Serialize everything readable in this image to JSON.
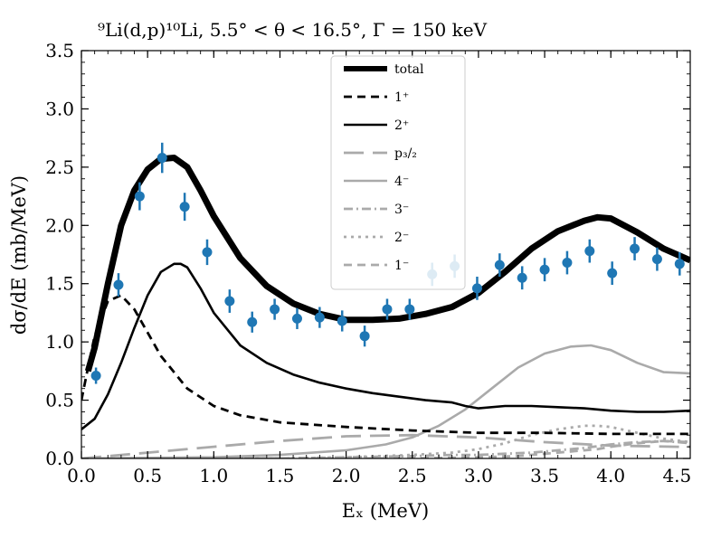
{
  "chart_data": {
    "type": "line",
    "title": "⁹Li(d,p)¹⁰Li, 5.5° < θ < 16.5°, Γ = 150 keV",
    "xlabel": "Eₓ (MeV)",
    "ylabel": "dσ/dE (mb/MeV)",
    "xlim": [
      0.0,
      4.6
    ],
    "ylim": [
      0.0,
      3.5
    ],
    "xticks": [
      0.0,
      0.5,
      1.0,
      1.5,
      2.0,
      2.5,
      3.0,
      3.5,
      4.0,
      4.5
    ],
    "yticks": [
      0.0,
      0.5,
      1.0,
      1.5,
      2.0,
      2.5,
      3.0,
      3.5
    ],
    "xtick_labels": [
      "0.0",
      "0.5",
      "1.0",
      "1.5",
      "2.0",
      "2.5",
      "3.0",
      "3.5",
      "4.0",
      "4.5"
    ],
    "ytick_labels": [
      "0.0",
      "0.5",
      "1.0",
      "1.5",
      "2.0",
      "2.5",
      "3.0",
      "3.5"
    ],
    "legend_position": "top-center",
    "series": [
      {
        "name": "total",
        "color": "#000000",
        "style": "thick-solid",
        "x": [
          0.05,
          0.1,
          0.2,
          0.3,
          0.4,
          0.5,
          0.6,
          0.7,
          0.8,
          0.9,
          1.0,
          1.2,
          1.4,
          1.6,
          1.8,
          2.0,
          2.2,
          2.4,
          2.6,
          2.8,
          3.0,
          3.2,
          3.4,
          3.6,
          3.8,
          3.9,
          4.0,
          4.2,
          4.4,
          4.6
        ],
        "y": [
          0.75,
          0.95,
          1.5,
          2.0,
          2.3,
          2.48,
          2.57,
          2.58,
          2.5,
          2.3,
          2.08,
          1.72,
          1.48,
          1.33,
          1.24,
          1.19,
          1.19,
          1.2,
          1.24,
          1.3,
          1.42,
          1.6,
          1.8,
          1.95,
          2.04,
          2.07,
          2.06,
          1.94,
          1.8,
          1.7
        ]
      },
      {
        "name": "1⁺",
        "color": "#000000",
        "style": "dashed",
        "x": [
          0.0,
          0.05,
          0.1,
          0.2,
          0.3,
          0.4,
          0.5,
          0.6,
          0.8,
          1.0,
          1.2,
          1.5,
          2.0,
          2.5,
          3.0,
          3.5,
          4.0,
          4.5,
          4.6
        ],
        "y": [
          0.5,
          0.78,
          1.05,
          1.35,
          1.4,
          1.28,
          1.08,
          0.88,
          0.6,
          0.45,
          0.37,
          0.31,
          0.27,
          0.24,
          0.22,
          0.22,
          0.21,
          0.21,
          0.21
        ]
      },
      {
        "name": "2⁺",
        "color": "#000000",
        "style": "solid",
        "x": [
          0.0,
          0.1,
          0.2,
          0.3,
          0.4,
          0.5,
          0.6,
          0.7,
          0.75,
          0.8,
          0.9,
          1.0,
          1.2,
          1.4,
          1.6,
          1.8,
          2.0,
          2.2,
          2.4,
          2.6,
          2.8,
          2.9,
          3.0,
          3.2,
          3.4,
          3.6,
          3.8,
          4.0,
          4.2,
          4.4,
          4.6
        ],
        "y": [
          0.25,
          0.34,
          0.55,
          0.82,
          1.12,
          1.4,
          1.6,
          1.67,
          1.67,
          1.64,
          1.46,
          1.25,
          0.97,
          0.82,
          0.72,
          0.65,
          0.6,
          0.56,
          0.53,
          0.5,
          0.48,
          0.45,
          0.43,
          0.45,
          0.45,
          0.44,
          0.43,
          0.41,
          0.4,
          0.4,
          0.41
        ]
      },
      {
        "name": "p₃/₂",
        "color": "#aaaaaa",
        "style": "long-dashed",
        "x": [
          0.0,
          0.5,
          1.0,
          1.5,
          2.0,
          2.5,
          3.0,
          3.5,
          4.0,
          4.5,
          4.6
        ],
        "y": [
          0.0,
          0.05,
          0.1,
          0.15,
          0.19,
          0.2,
          0.18,
          0.14,
          0.11,
          0.1,
          0.1
        ]
      },
      {
        "name": "4⁻",
        "color": "#aaaaaa",
        "style": "solid",
        "x": [
          0.0,
          1.0,
          1.5,
          2.0,
          2.3,
          2.5,
          2.7,
          2.9,
          3.1,
          3.3,
          3.5,
          3.7,
          3.85,
          4.0,
          4.2,
          4.4,
          4.6
        ],
        "y": [
          0.0,
          0.01,
          0.03,
          0.07,
          0.12,
          0.18,
          0.28,
          0.42,
          0.6,
          0.78,
          0.9,
          0.96,
          0.97,
          0.93,
          0.82,
          0.74,
          0.73
        ]
      },
      {
        "name": "3⁻",
        "color": "#aaaaaa",
        "style": "dash-dot",
        "x": [
          0.0,
          1.5,
          2.0,
          2.5,
          2.8,
          3.0,
          3.2,
          3.4,
          3.6,
          3.8,
          4.0,
          4.2,
          4.4,
          4.6
        ],
        "y": [
          0.0,
          0.0,
          0.01,
          0.02,
          0.03,
          0.03,
          0.04,
          0.05,
          0.07,
          0.09,
          0.12,
          0.14,
          0.15,
          0.13
        ]
      },
      {
        "name": "2⁻",
        "color": "#aaaaaa",
        "style": "dotted",
        "x": [
          0.0,
          1.5,
          2.0,
          2.5,
          2.8,
          3.0,
          3.2,
          3.4,
          3.6,
          3.8,
          3.9,
          4.0,
          4.2,
          4.4,
          4.6
        ],
        "y": [
          0.0,
          0.0,
          0.01,
          0.03,
          0.05,
          0.08,
          0.13,
          0.2,
          0.25,
          0.28,
          0.28,
          0.27,
          0.22,
          0.17,
          0.14
        ]
      },
      {
        "name": "1⁻",
        "color": "#aaaaaa",
        "style": "dashed",
        "x": [
          0.0,
          2.0,
          2.5,
          3.0,
          3.3,
          3.5,
          3.7,
          3.9,
          4.0,
          4.2,
          4.4,
          4.6
        ],
        "y": [
          0.0,
          0.0,
          0.0,
          0.01,
          0.02,
          0.04,
          0.06,
          0.08,
          0.1,
          0.13,
          0.15,
          0.14
        ]
      }
    ],
    "data_points": {
      "name": "data",
      "color": "#1f77b4",
      "x": [
        0.11,
        0.28,
        0.44,
        0.61,
        0.78,
        0.95,
        1.12,
        1.29,
        1.46,
        1.63,
        1.8,
        1.97,
        2.14,
        2.31,
        2.48,
        2.65,
        2.82,
        2.99,
        3.16,
        3.33,
        3.5,
        3.67,
        3.84,
        4.01,
        4.18,
        4.35,
        4.52
      ],
      "y": [
        0.71,
        1.49,
        2.25,
        2.58,
        2.16,
        1.77,
        1.35,
        1.17,
        1.28,
        1.2,
        1.21,
        1.18,
        1.05,
        1.28,
        1.28,
        1.58,
        1.65,
        1.46,
        1.66,
        1.55,
        1.62,
        1.68,
        1.78,
        1.59,
        1.8,
        1.71,
        1.67
      ],
      "yerr": [
        0.07,
        0.1,
        0.12,
        0.13,
        0.12,
        0.11,
        0.1,
        0.09,
        0.09,
        0.09,
        0.09,
        0.09,
        0.09,
        0.09,
        0.09,
        0.1,
        0.1,
        0.1,
        0.1,
        0.1,
        0.1,
        0.1,
        0.1,
        0.1,
        0.1,
        0.1,
        0.1
      ]
    }
  }
}
